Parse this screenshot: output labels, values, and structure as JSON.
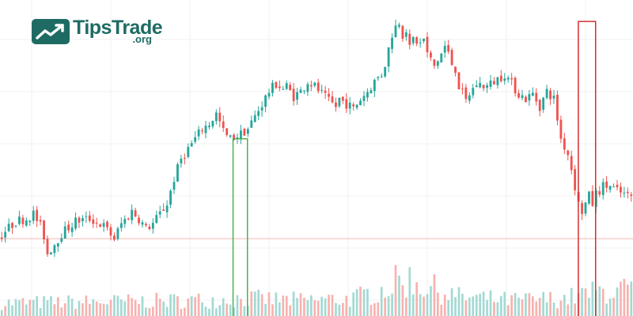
{
  "brand": {
    "name": "TipsTrade",
    "tld": ".org",
    "color": "#1e6b63",
    "icon": "trend-up-icon"
  },
  "colors": {
    "up": "#26a69a",
    "down": "#ef5350",
    "up_volume": "#a3d9d3",
    "down_volume": "#f7b2af",
    "grid": "#f0f0f0",
    "reference_line": "#f4b8b0",
    "highlight_green": "#4caf50",
    "highlight_red": "#d32f2f"
  },
  "chart_data": {
    "type": "candlestick",
    "title": "",
    "xlabel": "",
    "ylabel": "",
    "axes_visible": false,
    "grid": true,
    "candle_count": 180,
    "price_range": [
      0,
      100
    ],
    "volume_range": [
      0,
      100
    ],
    "price_path": [
      [
        0,
        12
      ],
      [
        2,
        15
      ],
      [
        5,
        19
      ],
      [
        8,
        20
      ],
      [
        10,
        22
      ],
      [
        12,
        17
      ],
      [
        13,
        13
      ],
      [
        14,
        6
      ],
      [
        16,
        10
      ],
      [
        18,
        14
      ],
      [
        22,
        19
      ],
      [
        26,
        20
      ],
      [
        30,
        17
      ],
      [
        33,
        12
      ],
      [
        35,
        18
      ],
      [
        37,
        21
      ],
      [
        38,
        23
      ],
      [
        40,
        20
      ],
      [
        42,
        16
      ],
      [
        44,
        18
      ],
      [
        46,
        22
      ],
      [
        48,
        26
      ],
      [
        50,
        36
      ],
      [
        52,
        44
      ],
      [
        55,
        50
      ],
      [
        58,
        56
      ],
      [
        60,
        58
      ],
      [
        62,
        62
      ],
      [
        64,
        55
      ],
      [
        65,
        53
      ],
      [
        66,
        52
      ],
      [
        69,
        54
      ],
      [
        71,
        56
      ],
      [
        73,
        61
      ],
      [
        75,
        66
      ],
      [
        77,
        71
      ],
      [
        79,
        74
      ],
      [
        81,
        72
      ],
      [
        82,
        73
      ],
      [
        84,
        69
      ],
      [
        86,
        71
      ],
      [
        88,
        75
      ],
      [
        90,
        73
      ],
      [
        92,
        70
      ],
      [
        94,
        67
      ],
      [
        96,
        65
      ],
      [
        97,
        68
      ],
      [
        99,
        66
      ],
      [
        101,
        64
      ],
      [
        103,
        68
      ],
      [
        105,
        71
      ],
      [
        107,
        75
      ],
      [
        109,
        78
      ],
      [
        110,
        82
      ],
      [
        111,
        88
      ],
      [
        112,
        94
      ],
      [
        113,
        97
      ],
      [
        114,
        99
      ],
      [
        115,
        94
      ],
      [
        116,
        96
      ],
      [
        117,
        88
      ],
      [
        118,
        92
      ],
      [
        120,
        90
      ],
      [
        121,
        92
      ],
      [
        122,
        86
      ],
      [
        124,
        81
      ],
      [
        126,
        86
      ],
      [
        127,
        89
      ],
      [
        128,
        86
      ],
      [
        129,
        82
      ],
      [
        130,
        80
      ],
      [
        131,
        73
      ],
      [
        132,
        70
      ],
      [
        133,
        67
      ],
      [
        134,
        70
      ],
      [
        136,
        74
      ],
      [
        139,
        73
      ],
      [
        142,
        76
      ],
      [
        144,
        78
      ],
      [
        146,
        74
      ],
      [
        148,
        70
      ],
      [
        150,
        68
      ],
      [
        152,
        70
      ],
      [
        154,
        65
      ],
      [
        156,
        71
      ],
      [
        158,
        68
      ],
      [
        159,
        60
      ],
      [
        160,
        52
      ],
      [
        162,
        46
      ],
      [
        163,
        40
      ],
      [
        164,
        33
      ],
      [
        165,
        26
      ],
      [
        166,
        23
      ],
      [
        168,
        29
      ],
      [
        169,
        26
      ],
      [
        170,
        30
      ],
      [
        172,
        33
      ],
      [
        174,
        33
      ],
      [
        176,
        31
      ],
      [
        179,
        29
      ]
    ],
    "reference_level": 12,
    "volume_path": [
      [
        0,
        15
      ],
      [
        20,
        16
      ],
      [
        40,
        17
      ],
      [
        55,
        18
      ],
      [
        70,
        20
      ],
      [
        85,
        18
      ],
      [
        100,
        20
      ],
      [
        108,
        30
      ],
      [
        112,
        38
      ],
      [
        116,
        42
      ],
      [
        120,
        35
      ],
      [
        130,
        22
      ],
      [
        145,
        18
      ],
      [
        160,
        20
      ],
      [
        170,
        28
      ],
      [
        179,
        30
      ]
    ],
    "highlights": [
      {
        "color": "green",
        "start": 81,
        "end": 86,
        "top": 52
      },
      {
        "color": "red",
        "start": 201,
        "end": 207,
        "top": 99
      }
    ]
  }
}
